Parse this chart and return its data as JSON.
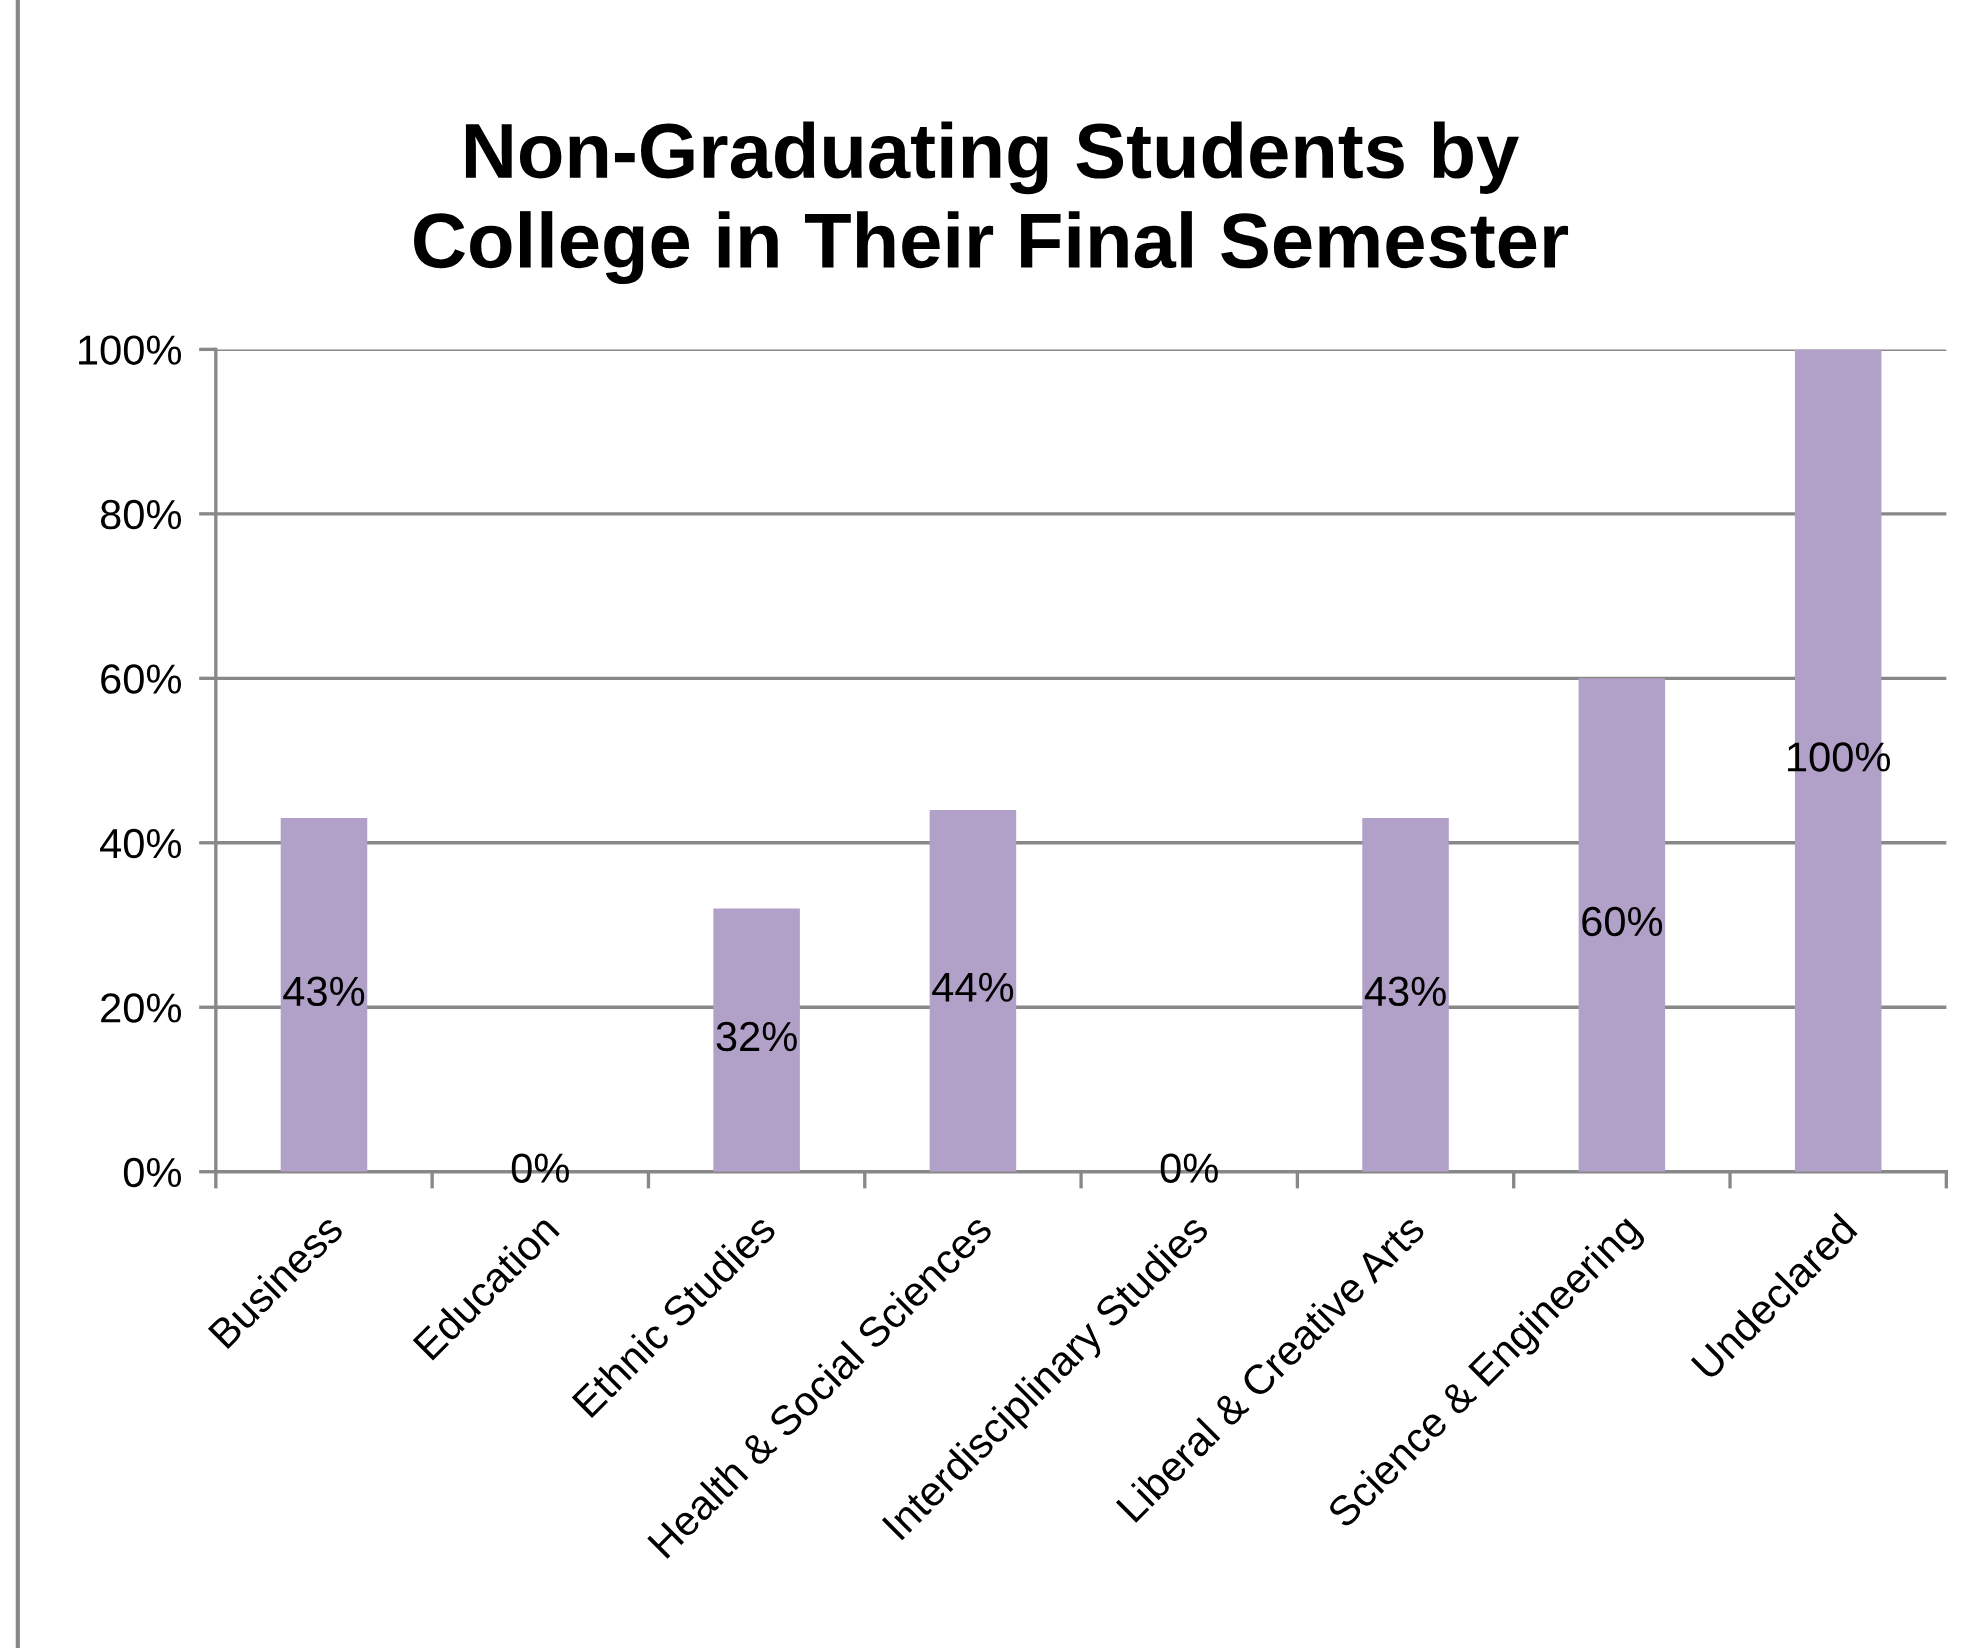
{
  "chart_data": {
    "type": "bar",
    "title": "Non-Graduating Students by\nCollege in Their Final Semester",
    "categories": [
      "Business",
      "Education",
      "Ethnic Studies",
      "Health & Social Sciences",
      "Interdisciplinary Studies",
      "Liberal & Creative Arts",
      "Science & Engineering",
      "Undeclared"
    ],
    "values": [
      43,
      0,
      32,
      44,
      0,
      43,
      60,
      100
    ],
    "value_labels": [
      "43%",
      "0%",
      "32%",
      "44%",
      "0%",
      "43%",
      "60%",
      "100%"
    ],
    "color": "#b1a0c7",
    "ylim": [
      0,
      100
    ],
    "yticks": [
      {
        "value": 0,
        "label": "0%"
      },
      {
        "value": 20,
        "label": "20%"
      },
      {
        "value": 40,
        "label": "40%"
      },
      {
        "value": 60,
        "label": "60%"
      },
      {
        "value": 80,
        "label": "80%"
      },
      {
        "value": 100,
        "label": "100%"
      }
    ],
    "grid": "y",
    "legend": false
  }
}
